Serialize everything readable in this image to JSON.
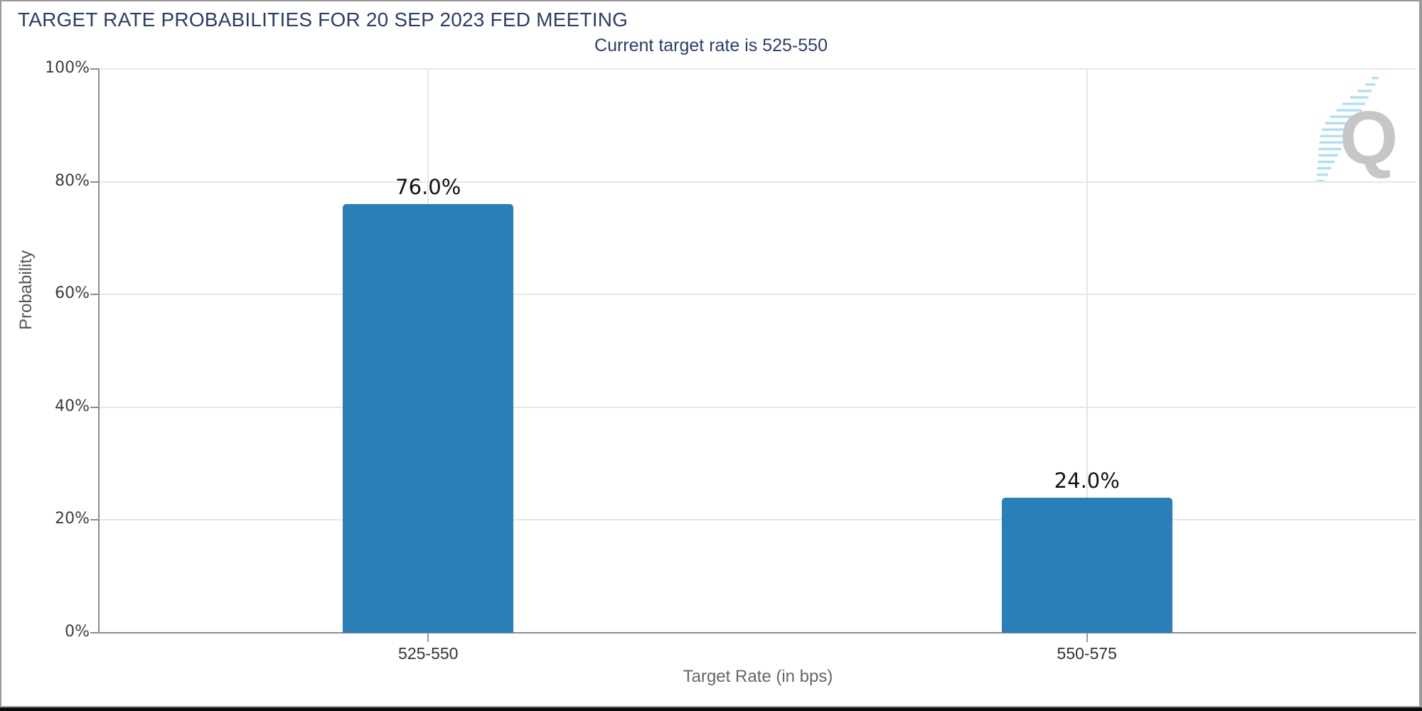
{
  "header": {
    "title": "TARGET RATE PROBABILITIES FOR 20 SEP 2023 FED MEETING"
  },
  "chart_data": {
    "type": "bar",
    "subtitle": "Current target rate is 525-550",
    "categories": [
      "525-550",
      "550-575"
    ],
    "values": [
      76.0,
      24.0
    ],
    "value_labels": [
      "76.0%",
      "24.0%"
    ],
    "xlabel": "Target Rate (in bps)",
    "ylabel": "Probability",
    "ylim": [
      0,
      100
    ],
    "yticks": [
      0,
      20,
      40,
      60,
      80,
      100
    ],
    "ytick_labels": [
      "0%",
      "20%",
      "40%",
      "60%",
      "80%",
      "100%"
    ],
    "legend": "none",
    "grid": "horizontal gridlines every 20%; one vertical gridline at each category center"
  },
  "colors": {
    "bar": "#2a7fb9",
    "title_text": "#2a3e6a",
    "grid": "#e6e6e6",
    "axis": "#8c8c8c",
    "tick": "#999999",
    "value_label": "#111111",
    "frame_border": "#9a9a9a",
    "bottom_bar": "#0a0a0a",
    "watermark_letter": "#c6c6c6",
    "watermark_dash": "#aee0f4"
  },
  "watermark": {
    "letter": "Q"
  }
}
